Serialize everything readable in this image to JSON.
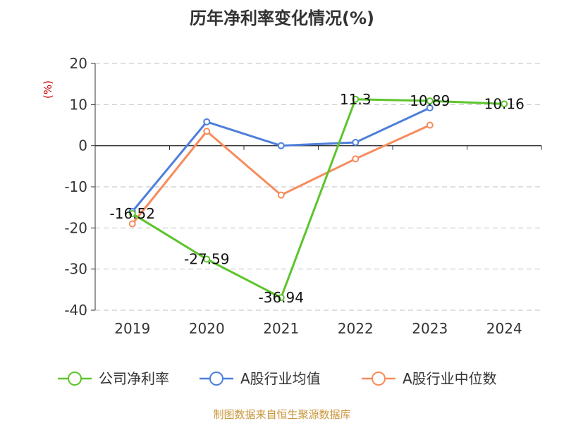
{
  "chart_data": {
    "type": "line",
    "title": "历年净利率变化情况(%)",
    "ylabel": "(%)",
    "categories": [
      "2019",
      "2020",
      "2021",
      "2022",
      "2023",
      "2024"
    ],
    "y_ticks": [
      20,
      10,
      0,
      -10,
      -20,
      -30,
      -40
    ],
    "ylim": [
      -40,
      20
    ],
    "grid": true,
    "legend_position": "bottom",
    "series": [
      {
        "name": "公司净利率",
        "color": "#5dc42c",
        "values": [
          -16.52,
          -27.59,
          -36.94,
          11.3,
          10.89,
          10.16
        ],
        "data_labels": [
          "-16.52",
          "-27.59",
          "-36.94",
          "11.3",
          "10.89",
          "10.16"
        ]
      },
      {
        "name": "A股行业均值",
        "color": "#4d7fdb",
        "values": [
          -16.0,
          5.8,
          0.0,
          0.8,
          9.2,
          null
        ]
      },
      {
        "name": "A股行业中位数",
        "color": "#f68c5c",
        "values": [
          -19.0,
          3.5,
          -12.0,
          -3.2,
          5.0,
          null
        ]
      }
    ]
  },
  "unit_color": "#cc0000",
  "footer": {
    "source": "制图数据来自恒生聚源数据库",
    "color": "#c9953b"
  }
}
